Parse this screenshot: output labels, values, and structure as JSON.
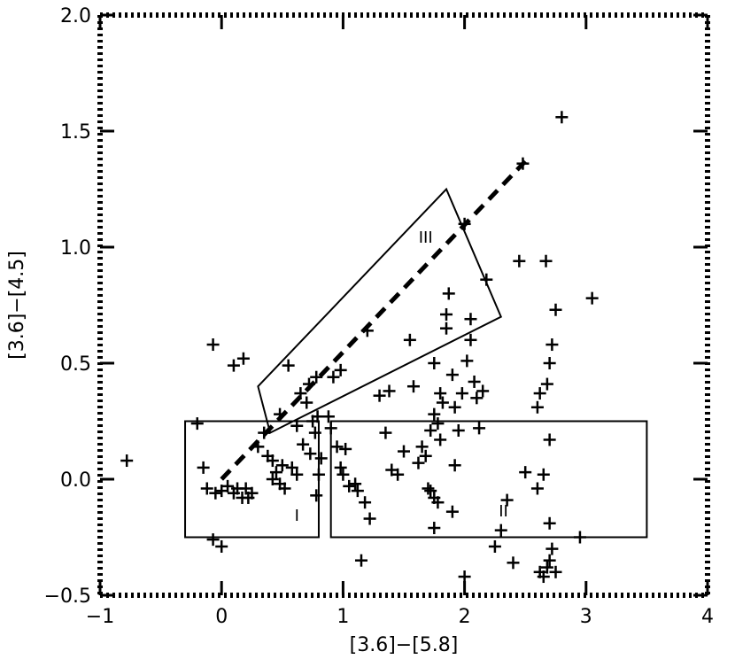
{
  "chart_data": {
    "type": "scatter",
    "title": "",
    "xlabel": "[3.6]−[5.8]",
    "ylabel": "[3.6]−[4.5]",
    "xlim": [
      -1,
      4
    ],
    "ylim": [
      -0.5,
      2.0
    ],
    "xticks": [
      -1,
      0,
      1,
      2,
      3,
      4
    ],
    "xtick_labels": [
      "−1",
      "0",
      "1",
      "2",
      "3",
      "4"
    ],
    "yticks": [
      -0.5,
      0.0,
      0.5,
      1.0,
      1.5,
      2.0
    ],
    "ytick_labels": [
      "−0.5",
      "0.0",
      "0.5",
      "1.0",
      "1.5",
      "2.0"
    ],
    "grid": false,
    "legend": "none",
    "marker": "plus",
    "color": "#000000",
    "series": [
      {
        "points": [
          [
            -0.78,
            0.08
          ],
          [
            -0.07,
            0.58
          ],
          [
            0.1,
            0.49
          ],
          [
            0.18,
            0.52
          ],
          [
            -0.2,
            0.24
          ],
          [
            -0.15,
            0.05
          ],
          [
            -0.12,
            -0.04
          ],
          [
            -0.05,
            -0.06
          ],
          [
            0.0,
            -0.05
          ],
          [
            0.05,
            -0.03
          ],
          [
            0.1,
            -0.06
          ],
          [
            0.13,
            -0.04
          ],
          [
            0.17,
            -0.08
          ],
          [
            0.2,
            -0.04
          ],
          [
            0.22,
            -0.08
          ],
          [
            0.25,
            -0.06
          ],
          [
            -0.07,
            -0.26
          ],
          [
            0.0,
            -0.29
          ],
          [
            0.3,
            0.14
          ],
          [
            0.35,
            0.2
          ],
          [
            0.38,
            0.1
          ],
          [
            0.42,
            0.08
          ],
          [
            0.42,
            0.0
          ],
          [
            0.45,
            0.03
          ],
          [
            0.48,
            -0.02
          ],
          [
            0.5,
            0.06
          ],
          [
            0.52,
            -0.04
          ],
          [
            0.48,
            0.28
          ],
          [
            0.55,
            0.49
          ],
          [
            0.62,
            0.23
          ],
          [
            0.65,
            0.37
          ],
          [
            0.7,
            0.33
          ],
          [
            0.72,
            0.41
          ],
          [
            0.75,
            0.25
          ],
          [
            0.78,
            0.44
          ],
          [
            0.67,
            0.15
          ],
          [
            0.73,
            0.11
          ],
          [
            0.77,
            0.2
          ],
          [
            0.79,
            0.27
          ],
          [
            0.82,
            0.09
          ],
          [
            0.58,
            0.05
          ],
          [
            0.62,
            0.02
          ],
          [
            0.78,
            -0.07
          ],
          [
            0.8,
            0.02
          ],
          [
            0.88,
            0.27
          ],
          [
            0.9,
            0.22
          ],
          [
            0.95,
            0.14
          ],
          [
            0.98,
            0.05
          ],
          [
            1.0,
            0.02
          ],
          [
            0.92,
            0.44
          ],
          [
            0.98,
            0.47
          ],
          [
            1.02,
            0.13
          ],
          [
            1.05,
            -0.03
          ],
          [
            1.1,
            -0.02
          ],
          [
            1.12,
            -0.05
          ],
          [
            1.18,
            -0.1
          ],
          [
            1.22,
            -0.17
          ],
          [
            1.15,
            -0.35
          ],
          [
            1.2,
            0.64
          ],
          [
            1.3,
            0.36
          ],
          [
            1.35,
            0.2
          ],
          [
            1.38,
            0.38
          ],
          [
            1.4,
            0.04
          ],
          [
            1.45,
            0.02
          ],
          [
            1.5,
            0.12
          ],
          [
            1.55,
            0.6
          ],
          [
            1.58,
            0.4
          ],
          [
            1.62,
            0.07
          ],
          [
            1.65,
            0.14
          ],
          [
            1.68,
            0.1
          ],
          [
            1.7,
            -0.04
          ],
          [
            1.72,
            -0.05
          ],
          [
            1.75,
            -0.08
          ],
          [
            1.78,
            -0.1
          ],
          [
            1.75,
            -0.21
          ],
          [
            1.72,
            0.21
          ],
          [
            1.75,
            0.28
          ],
          [
            1.78,
            0.24
          ],
          [
            1.8,
            0.17
          ],
          [
            1.8,
            0.37
          ],
          [
            1.75,
            0.5
          ],
          [
            1.82,
            0.33
          ],
          [
            1.85,
            0.71
          ],
          [
            1.85,
            0.65
          ],
          [
            1.87,
            0.8
          ],
          [
            1.9,
            0.45
          ],
          [
            1.92,
            0.31
          ],
          [
            1.9,
            -0.14
          ],
          [
            1.92,
            0.06
          ],
          [
            1.95,
            0.21
          ],
          [
            1.98,
            0.37
          ],
          [
            2.0,
            1.1
          ],
          [
            2.05,
            0.69
          ],
          [
            2.05,
            0.6
          ],
          [
            2.02,
            0.51
          ],
          [
            2.08,
            0.42
          ],
          [
            2.1,
            0.35
          ],
          [
            2.12,
            0.22
          ],
          [
            2.15,
            0.38
          ],
          [
            2.18,
            0.86
          ],
          [
            2.0,
            -0.42
          ],
          [
            2.25,
            -0.29
          ],
          [
            2.3,
            -0.22
          ],
          [
            2.35,
            -0.09
          ],
          [
            2.4,
            -0.36
          ],
          [
            2.45,
            0.94
          ],
          [
            2.5,
            0.03
          ],
          [
            2.6,
            0.31
          ],
          [
            2.62,
            0.37
          ],
          [
            2.6,
            -0.04
          ],
          [
            2.65,
            0.02
          ],
          [
            2.67,
            0.94
          ],
          [
            2.68,
            0.41
          ],
          [
            2.7,
            0.5
          ],
          [
            2.72,
            0.58
          ],
          [
            2.7,
            0.17
          ],
          [
            2.75,
            0.73
          ],
          [
            3.05,
            0.78
          ],
          [
            2.8,
            1.56
          ],
          [
            2.48,
            1.36
          ],
          [
            2.7,
            -0.19
          ],
          [
            2.72,
            -0.3
          ],
          [
            2.7,
            -0.35
          ],
          [
            2.62,
            -0.4
          ],
          [
            2.65,
            -0.42
          ],
          [
            2.68,
            -0.38
          ],
          [
            2.75,
            -0.4
          ],
          [
            2.95,
            -0.25
          ]
        ]
      }
    ],
    "boxes": [
      {
        "label": "I",
        "corners": [
          [
            -0.3,
            -0.25
          ],
          [
            0.8,
            -0.25
          ],
          [
            0.8,
            0.25
          ],
          [
            -0.3,
            0.25
          ]
        ]
      },
      {
        "label": "II",
        "corners": [
          [
            0.9,
            -0.25
          ],
          [
            3.5,
            -0.25
          ],
          [
            3.5,
            0.25
          ],
          [
            0.9,
            0.25
          ]
        ]
      },
      {
        "label": "III",
        "corners": [
          [
            0.3,
            0.4
          ],
          [
            1.85,
            1.25
          ],
          [
            2.3,
            0.7
          ],
          [
            0.4,
            0.2
          ]
        ]
      }
    ],
    "region_label_positions": [
      {
        "label": "I",
        "at": [
          0.62,
          -0.18
        ]
      },
      {
        "label": "II",
        "at": [
          2.32,
          -0.16
        ]
      },
      {
        "label": "III",
        "at": [
          1.68,
          1.02
        ]
      }
    ],
    "dashed_line": {
      "from": [
        0.0,
        0.0
      ],
      "to": [
        2.5,
        1.37
      ]
    }
  }
}
